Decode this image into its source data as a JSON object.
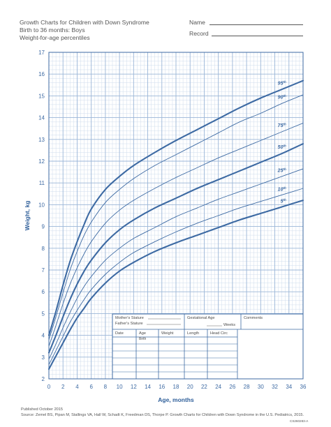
{
  "header": {
    "title": "Growth Charts for Children with Down Syndrome",
    "subtitle_1": "Birth to 36 months: Boys",
    "subtitle_2": "Weight-for-age percentiles",
    "name_label": "Name",
    "record_label": "Record"
  },
  "footer": {
    "published": "Published October 2015",
    "source": "Source: Zemel BS, Pipan M, Stallings VA, Hall W, Schadt K, Freedman DS, Thorpe P. Growth Charts for Children with Down Syndrome in the U.S. Pediatrics, 2015.",
    "code": "CS260283-A"
  },
  "form": {
    "mothers_stature": "Mother's Stature",
    "fathers_stature": "Father's Stature",
    "gestational_age": "Gestational Age",
    "weeks": "Weeks",
    "comments": "Comments",
    "col_date": "Date",
    "col_age": "Age",
    "col_age_sub": "Birth",
    "col_weight": "Weight",
    "col_length": "Length",
    "col_head": "Head Circ"
  },
  "chart_data": {
    "type": "line",
    "xlabel": "Age, months",
    "ylabel": "Weight, kg",
    "xlim": [
      0,
      36
    ],
    "ylim": [
      2,
      17
    ],
    "x_ticks": [
      0,
      2,
      4,
      6,
      8,
      10,
      12,
      14,
      16,
      18,
      20,
      22,
      24,
      26,
      28,
      30,
      32,
      34,
      36
    ],
    "y_ticks": [
      2,
      3,
      4,
      5,
      6,
      7,
      8,
      9,
      10,
      11,
      12,
      13,
      14,
      15,
      16,
      17
    ],
    "grid": true,
    "x": [
      0,
      1,
      2,
      3,
      4,
      5,
      6,
      8,
      10,
      12,
      15,
      18,
      21,
      24,
      27,
      30,
      33,
      36
    ],
    "series": [
      {
        "name": "95th",
        "bold": true,
        "values": [
          4.0,
          5.1,
          6.3,
          7.4,
          8.3,
          9.1,
          9.8,
          10.7,
          11.3,
          11.8,
          12.4,
          12.95,
          13.45,
          13.95,
          14.45,
          14.9,
          15.3,
          15.7
        ]
      },
      {
        "name": "90th",
        "bold": false,
        "values": [
          3.8,
          4.85,
          5.95,
          7.0,
          7.85,
          8.6,
          9.2,
          10.1,
          10.7,
          11.2,
          11.8,
          12.3,
          12.8,
          13.3,
          13.8,
          14.2,
          14.65,
          15.05
        ]
      },
      {
        "name": "75th",
        "bold": false,
        "values": [
          3.5,
          4.45,
          5.45,
          6.35,
          7.1,
          7.75,
          8.3,
          9.15,
          9.75,
          10.2,
          10.75,
          11.25,
          11.7,
          12.15,
          12.55,
          12.95,
          13.35,
          13.75
        ]
      },
      {
        "name": "50th",
        "bold": true,
        "values": [
          3.2,
          4.0,
          4.85,
          5.65,
          6.35,
          6.95,
          7.45,
          8.25,
          8.85,
          9.3,
          9.85,
          10.3,
          10.75,
          11.15,
          11.55,
          11.95,
          12.35,
          12.8
        ]
      },
      {
        "name": "25th",
        "bold": false,
        "values": [
          2.9,
          3.6,
          4.35,
          5.05,
          5.7,
          6.25,
          6.7,
          7.45,
          8.0,
          8.45,
          8.95,
          9.45,
          9.85,
          10.25,
          10.6,
          10.95,
          11.3,
          11.65
        ]
      },
      {
        "name": "10th",
        "bold": false,
        "values": [
          2.65,
          3.3,
          3.95,
          4.6,
          5.15,
          5.65,
          6.1,
          6.8,
          7.35,
          7.8,
          8.3,
          8.75,
          9.15,
          9.5,
          9.85,
          10.15,
          10.45,
          10.75
        ]
      },
      {
        "name": "5th",
        "bold": true,
        "values": [
          2.45,
          3.05,
          3.65,
          4.25,
          4.8,
          5.25,
          5.7,
          6.4,
          6.95,
          7.35,
          7.85,
          8.25,
          8.6,
          8.95,
          9.3,
          9.6,
          9.9,
          10.2
        ]
      }
    ]
  }
}
